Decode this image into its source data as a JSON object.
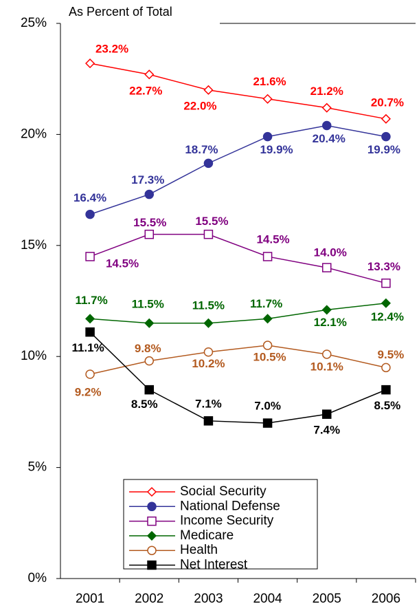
{
  "chart_data": {
    "type": "line",
    "title": "As Percent of Total",
    "categories": [
      "2001",
      "2002",
      "2003",
      "2004",
      "2005",
      "2006"
    ],
    "ylim": [
      0,
      25
    ],
    "yticks": [
      {
        "value": 0,
        "label": "0%"
      },
      {
        "value": 5,
        "label": "5%"
      },
      {
        "value": 10,
        "label": "10%"
      },
      {
        "value": 15,
        "label": "15%"
      },
      {
        "value": 20,
        "label": "20%"
      },
      {
        "value": 25,
        "label": "25%"
      }
    ],
    "legend": "bottom-center",
    "series": [
      {
        "name": "Social Security",
        "color": "#ff0000",
        "marker": "diamond-open",
        "values": [
          23.2,
          22.7,
          22.0,
          21.6,
          21.2,
          20.7
        ],
        "value_labels": [
          "23.2%",
          "22.7%",
          "22.0%",
          "21.6%",
          "21.2%",
          "20.7%"
        ]
      },
      {
        "name": "National Defense",
        "color": "#333399",
        "marker": "circle-filled",
        "values": [
          16.4,
          17.3,
          18.7,
          19.9,
          20.4,
          19.9
        ],
        "value_labels": [
          "16.4%",
          "17.3%",
          "18.7%",
          "19.9%",
          "20.4%",
          "19.9%"
        ]
      },
      {
        "name": "Income Security",
        "color": "#800080",
        "marker": "square-open",
        "values": [
          14.5,
          15.5,
          15.5,
          14.5,
          14.0,
          13.3
        ],
        "value_labels": [
          "14.5%",
          "15.5%",
          "15.5%",
          "14.5%",
          "14.0%",
          "13.3%"
        ]
      },
      {
        "name": "Medicare",
        "color": "#006600",
        "marker": "diamond-filled",
        "values": [
          11.7,
          11.5,
          11.5,
          11.7,
          12.1,
          12.4
        ],
        "value_labels": [
          "11.7%",
          "11.5%",
          "11.5%",
          "11.7%",
          "12.1%",
          "12.4%"
        ]
      },
      {
        "name": "Health",
        "color": "#b35a1f",
        "marker": "circle-open",
        "values": [
          9.2,
          9.8,
          10.2,
          10.5,
          10.1,
          9.5
        ],
        "value_labels": [
          "9.2%",
          "9.8%",
          "10.2%",
          "10.5%",
          "10.1%",
          "9.5%"
        ]
      },
      {
        "name": "Net Interest",
        "color": "#000000",
        "marker": "square-filled",
        "values": [
          11.1,
          8.5,
          7.1,
          7.0,
          7.4,
          8.5
        ],
        "value_labels": [
          "11.1%",
          "8.5%",
          "7.1%",
          "7.0%",
          "7.4%",
          "8.5%"
        ]
      }
    ]
  }
}
